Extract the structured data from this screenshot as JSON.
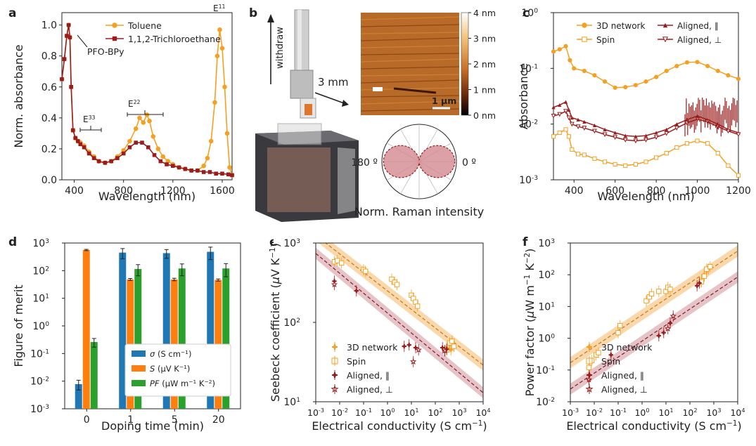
{
  "colors": {
    "orange": "#f5a023",
    "darkred": "#9b1c1c",
    "blue": "#1f77b4",
    "bar_orange": "#ff7f0e",
    "green": "#2ca02c",
    "light_orange": "#f5a945",
    "mauve": "#c77b80"
  },
  "panels": {
    "a": "a",
    "b": "b",
    "c": "c",
    "d": "d",
    "e": "e",
    "f": "f"
  },
  "panel_b": {
    "withdraw": "withdraw",
    "mm": "3 mm",
    "scale_bar": "1 μm",
    "colorbar_ticks": [
      "4 nm",
      "3 nm",
      "2 nm",
      "1 nm",
      "0 nm"
    ],
    "angle_left": "180 º",
    "angle_right": "0 º",
    "raman_label": "Norm. Raman intensity"
  },
  "chart_data": [
    {
      "panel": "a",
      "type": "line",
      "xlabel": "Wavelength (nm)",
      "ylabel": "Norm. absorbance",
      "xlim": [
        300,
        1680
      ],
      "ylim": [
        0,
        1.08
      ],
      "xticks": [
        400,
        800,
        1200,
        1600
      ],
      "yticks": [
        0.0,
        0.2,
        0.4,
        0.6,
        0.8,
        1.0
      ],
      "annotations": {
        "pfo": "PFO-BPy",
        "e11": "E",
        "e11_sub": "11",
        "e22": "E",
        "e22_sub": "22",
        "e33": "E",
        "e33_sub": "33"
      },
      "series": [
        {
          "name": "Toluene",
          "color": "#f5a023",
          "marker": "circle",
          "x": [
            300,
            320,
            340,
            355,
            365,
            375,
            390,
            410,
            430,
            450,
            480,
            520,
            560,
            600,
            650,
            700,
            750,
            800,
            850,
            900,
            930,
            960,
            990,
            1010,
            1040,
            1080,
            1120,
            1160,
            1200,
            1250,
            1300,
            1350,
            1400,
            1450,
            1480,
            1510,
            1540,
            1560,
            1580,
            1600,
            1620,
            1640,
            1660,
            1680
          ],
          "y": [
            0.65,
            0.78,
            0.93,
            1.0,
            0.92,
            0.6,
            0.32,
            0.27,
            0.25,
            0.24,
            0.22,
            0.18,
            0.15,
            0.12,
            0.11,
            0.12,
            0.15,
            0.19,
            0.25,
            0.33,
            0.4,
            0.37,
            0.42,
            0.38,
            0.28,
            0.2,
            0.15,
            0.12,
            0.1,
            0.08,
            0.07,
            0.06,
            0.06,
            0.09,
            0.14,
            0.25,
            0.5,
            0.8,
            0.97,
            0.85,
            0.6,
            0.3,
            0.08,
            0.03
          ]
        },
        {
          "name": "1,1,2-Trichloroethane",
          "color": "#9b1c1c",
          "marker": "square",
          "x": [
            300,
            320,
            340,
            355,
            365,
            375,
            390,
            410,
            430,
            450,
            480,
            520,
            560,
            600,
            650,
            700,
            750,
            800,
            850,
            900,
            950,
            1000,
            1050,
            1100,
            1150,
            1200,
            1250,
            1300,
            1350,
            1400,
            1450,
            1500,
            1550,
            1600,
            1650,
            1680
          ],
          "y": [
            0.65,
            0.78,
            0.93,
            1.0,
            0.92,
            0.6,
            0.32,
            0.27,
            0.25,
            0.23,
            0.21,
            0.17,
            0.14,
            0.12,
            0.11,
            0.12,
            0.14,
            0.17,
            0.21,
            0.24,
            0.24,
            0.21,
            0.16,
            0.12,
            0.1,
            0.09,
            0.08,
            0.07,
            0.06,
            0.06,
            0.05,
            0.05,
            0.04,
            0.04,
            0.035,
            0.03
          ]
        }
      ]
    },
    {
      "panel": "c",
      "type": "line",
      "yscale": "log",
      "xlabel": "Wavelength (nm)",
      "ylabel": "Absorbance",
      "xlim": [
        300,
        1200
      ],
      "ylim": [
        0.001,
        1
      ],
      "xticks": [
        400,
        600,
        800,
        1000,
        1200
      ],
      "ytick_labels": [
        "10",
        "10",
        "10",
        "10"
      ],
      "ytick_exps": [
        "0",
        "-1",
        "-2",
        "-3"
      ],
      "series": [
        {
          "name": "3D network",
          "color": "#f5a023",
          "marker": "circle-filled",
          "x": [
            300,
            330,
            360,
            380,
            400,
            450,
            500,
            550,
            600,
            650,
            700,
            750,
            800,
            850,
            900,
            950,
            1000,
            1050,
            1100,
            1150,
            1200
          ],
          "y": [
            0.2,
            0.22,
            0.25,
            0.14,
            0.1,
            0.09,
            0.075,
            0.058,
            0.045,
            0.046,
            0.05,
            0.058,
            0.07,
            0.09,
            0.11,
            0.128,
            0.13,
            0.11,
            0.09,
            0.075,
            0.065
          ]
        },
        {
          "name": "Spin",
          "color": "#f5a023",
          "marker": "square-open",
          "x": [
            300,
            330,
            360,
            375,
            390,
            420,
            450,
            500,
            550,
            600,
            650,
            700,
            750,
            800,
            850,
            900,
            950,
            1000,
            1050,
            1100,
            1150,
            1200
          ],
          "y": [
            0.006,
            0.007,
            0.008,
            0.006,
            0.0035,
            0.0029,
            0.0028,
            0.0024,
            0.0021,
            0.0019,
            0.0018,
            0.0019,
            0.0021,
            0.0025,
            0.003,
            0.0038,
            0.0045,
            0.005,
            0.0045,
            0.003,
            0.0018,
            0.0012
          ]
        },
        {
          "name": "Aligned, ∥",
          "color": "#9b1c1c",
          "marker": "triangle-filled",
          "x": [
            300,
            330,
            360,
            375,
            390,
            420,
            450,
            500,
            550,
            600,
            650,
            700,
            750,
            800,
            850,
            900,
            950,
            1000,
            1050,
            1100,
            1150,
            1200
          ],
          "y": [
            0.02,
            0.022,
            0.025,
            0.018,
            0.013,
            0.012,
            0.011,
            0.0095,
            0.008,
            0.007,
            0.0062,
            0.006,
            0.0062,
            0.007,
            0.008,
            0.01,
            0.012,
            0.014,
            0.012,
            0.01,
            0.008,
            0.007
          ]
        },
        {
          "name": "Aligned, ⊥",
          "color": "#9b1c1c",
          "marker": "triangle-down-open",
          "x": [
            300,
            330,
            360,
            375,
            390,
            420,
            450,
            500,
            550,
            600,
            650,
            700,
            750,
            800,
            850,
            900,
            950,
            1000,
            1050,
            1100,
            1150,
            1200
          ],
          "y": [
            0.014,
            0.015,
            0.017,
            0.013,
            0.01,
            0.009,
            0.0085,
            0.0075,
            0.0065,
            0.0058,
            0.0052,
            0.005,
            0.0052,
            0.0058,
            0.0068,
            0.0085,
            0.0105,
            0.0122,
            0.011,
            0.009,
            0.0075,
            0.0065
          ]
        }
      ]
    },
    {
      "panel": "d",
      "type": "bar",
      "yscale": "log",
      "xlabel": "Doping time (min)",
      "ylabel": "Figure of merit",
      "categories": [
        "0",
        "1",
        "5",
        "20"
      ],
      "ylim": [
        0.001,
        1000
      ],
      "ytick_labels": [
        "10",
        "10",
        "10",
        "10",
        "10",
        "10",
        "10"
      ],
      "ytick_exps": [
        "3",
        "2",
        "1",
        "0",
        "-1",
        "-2",
        "-3"
      ],
      "legend": [
        "σ (S cm",
        "S (μV K",
        "PF (μW m"
      ],
      "legend_sup": [
        "−1",
        "−1",
        "−1"
      ],
      "legend_tail": [
        ")",
        ")",
        " K"
      ],
      "legend_tail_sup": [
        "",
        "",
        "−2"
      ],
      "legend_close": [
        "",
        "",
        ")"
      ],
      "series": [
        {
          "name": "σ",
          "color": "#1f77b4",
          "values": [
            0.0078,
            450,
            430,
            480
          ],
          "err": [
            0.003,
            180,
            150,
            230
          ]
        },
        {
          "name": "S",
          "color": "#ff7f0e",
          "values": [
            560,
            48,
            48,
            46
          ],
          "err": [
            30,
            4,
            5,
            4
          ]
        },
        {
          "name": "PF",
          "color": "#2ca02c",
          "values": [
            0.26,
            115,
            120,
            120
          ],
          "err": [
            0.09,
            50,
            55,
            60
          ]
        }
      ]
    },
    {
      "panel": "e",
      "type": "scatter",
      "xscale": "log",
      "yscale": "log",
      "xlabel": "Electrical conductivity (S cm",
      "xlabel_sup": "−1",
      "xlabel_close": ")",
      "ylabel": "Seebeck coefficient (μV K",
      "ylabel_sup": "−1",
      "ylabel_close": ")",
      "xlim": [
        0.001,
        10000
      ],
      "ylim": [
        10,
        1000
      ],
      "xtick_exps": [
        "-3",
        "-2",
        "-1",
        "0",
        "1",
        "2",
        "3",
        "4"
      ],
      "ytick_exps": [
        "1",
        "2",
        "3"
      ],
      "tick_base": "10",
      "fits": [
        {
          "color": "#f5a945",
          "x": [
            0.001,
            10000
          ],
          "y": [
            1250,
            29
          ]
        },
        {
          "color": "#c77b80",
          "x": [
            0.001,
            10000
          ],
          "y": [
            740,
            13
          ]
        }
      ],
      "series": [
        {
          "name": "3D network",
          "color": "#f5a023",
          "marker": "plus-filled",
          "x": [
            300,
            400,
            500,
            600,
            450
          ],
          "y": [
            48,
            52,
            55,
            50,
            45
          ]
        },
        {
          "name": "Spin",
          "color": "#f5a023",
          "marker": "square-open",
          "x": [
            0.006,
            0.008,
            0.012,
            0.1,
            0.12,
            1.5,
            2,
            2.5,
            10,
            12,
            15,
            18,
            300,
            400,
            500,
            600
          ],
          "y": [
            580,
            600,
            560,
            460,
            440,
            350,
            320,
            300,
            220,
            200,
            180,
            160,
            45,
            55,
            58,
            50
          ]
        },
        {
          "name": "Aligned, ∥",
          "color": "#9b1c1c",
          "marker": "plus-filled",
          "x": [
            0.006,
            0.05,
            5,
            8,
            15,
            200,
            250,
            300
          ],
          "y": [
            330,
            250,
            50,
            52,
            48,
            48,
            44,
            46
          ]
        },
        {
          "name": "Aligned, ⊥",
          "color": "#9b1c1c",
          "marker": "star-open",
          "x": [
            0.006,
            12,
            20,
            250
          ],
          "y": [
            300,
            32,
            45,
            44
          ]
        }
      ]
    },
    {
      "panel": "f",
      "type": "scatter",
      "xscale": "log",
      "yscale": "log",
      "xlabel": "Electrical conductivity (S cm",
      "xlabel_sup": "−1",
      "xlabel_close": ")",
      "ylabel": "Power factor (μW m",
      "ylabel_sup": "−1",
      "ylabel_mid": " K",
      "ylabel_sup2": "−2",
      "ylabel_close": ")",
      "xlim": [
        0.001,
        10000
      ],
      "ylim": [
        0.01,
        1000
      ],
      "xtick_exps": [
        "-3",
        "-2",
        "-1",
        "0",
        "1",
        "2",
        "3",
        "4"
      ],
      "ytick_exps": [
        "3",
        "2",
        "1",
        "0",
        "-1",
        "-2"
      ],
      "tick_base": "10",
      "fits": [
        {
          "color": "#f5a945",
          "x": [
            0.001,
            10000
          ],
          "y": [
            0.17,
            560
          ]
        },
        {
          "color": "#c77b80",
          "x": [
            0.001,
            10000
          ],
          "y": [
            0.025,
            85
          ]
        }
      ],
      "series": [
        {
          "name": "3D network",
          "color": "#f5a023",
          "marker": "plus-filled",
          "x": [
            300,
            400,
            500,
            600
          ],
          "y": [
            60,
            100,
            130,
            150
          ]
        },
        {
          "name": "Spin",
          "color": "#f5a023",
          "marker": "square-open",
          "x": [
            0.006,
            0.008,
            0.012,
            0.015,
            0.1,
            0.12,
            1.5,
            2,
            2.5,
            5,
            10,
            12,
            15,
            300,
            400,
            500,
            700
          ],
          "y": [
            0.12,
            0.2,
            0.3,
            0.35,
            1.5,
            2.5,
            15,
            20,
            25,
            30,
            30,
            40,
            35,
            60,
            90,
            150,
            180
          ]
        },
        {
          "name": "Aligned, ∥",
          "color": "#9b1c1c",
          "marker": "plus-filled",
          "x": [
            0.006,
            0.05,
            5,
            8,
            15,
            200,
            250
          ],
          "y": [
            0.05,
            0.3,
            1.2,
            1.5,
            3,
            45,
            55
          ]
        },
        {
          "name": "Aligned, ⊥",
          "color": "#9b1c1c",
          "marker": "star-open",
          "x": [
            0.006,
            12,
            20
          ],
          "y": [
            0.05,
            2,
            5
          ]
        }
      ]
    }
  ]
}
